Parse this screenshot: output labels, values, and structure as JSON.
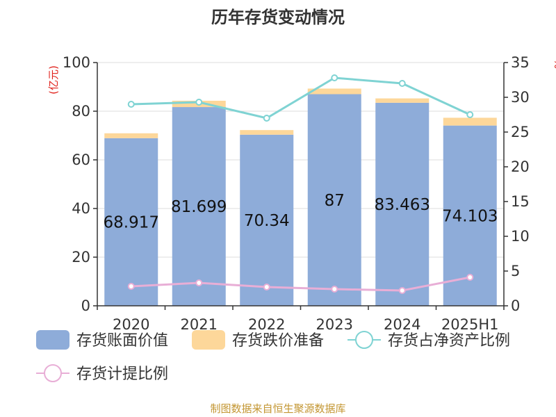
{
  "chart_data": {
    "type": "bar",
    "title": "历年存货变动情况",
    "categories": [
      "2020",
      "2021",
      "2022",
      "2023",
      "2024",
      "2025H1"
    ],
    "ylabel_left": "(亿元)",
    "ylabel_right": "%",
    "ylim_left": [
      0,
      100
    ],
    "ylim_right": [
      0,
      35
    ],
    "yticks_left": [
      "0",
      "20",
      "40",
      "60",
      "80",
      "100"
    ],
    "yticks_right": [
      "0",
      "5",
      "10",
      "15",
      "20",
      "25",
      "30",
      "35"
    ],
    "series": [
      {
        "name": "存货账面价值",
        "axis": "left",
        "kind": "bar",
        "color": "#8eacd9",
        "values": [
          68.917,
          81.699,
          70.34,
          87,
          83.463,
          74.103
        ],
        "labels": [
          "68.917",
          "81.699",
          "70.34",
          "87",
          "83.463",
          "74.103"
        ]
      },
      {
        "name": "存货跌价准备",
        "axis": "left",
        "kind": "bar-stacked",
        "color": "#fdd79a",
        "values": [
          2.0,
          2.6,
          1.9,
          2.3,
          1.8,
          3.2
        ]
      },
      {
        "name": "存货占净资产比例",
        "axis": "right",
        "kind": "line",
        "color": "#7fd3d3",
        "values": [
          29.0,
          29.3,
          27.0,
          32.8,
          32.0,
          27.5
        ]
      },
      {
        "name": "存货计提比例",
        "axis": "right",
        "kind": "line",
        "color": "#e8aed6",
        "values": [
          2.8,
          3.3,
          2.7,
          2.4,
          2.2,
          4.1
        ]
      }
    ],
    "grid": true,
    "legend_position": "bottom"
  },
  "footer": "制图数据来自恒生聚源数据库"
}
